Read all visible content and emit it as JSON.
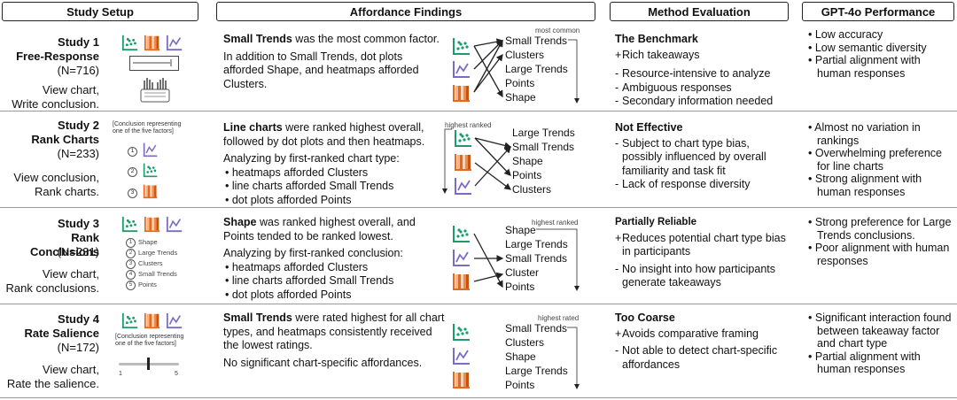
{
  "headers": {
    "setup": "Study Setup",
    "findings": "Affordance Findings",
    "method": "Method Evaluation",
    "gpt": "GPT-4o Performance"
  },
  "studies": [
    {
      "title": "Study 1",
      "subtitle": "Free-Response",
      "n": "(N=716)",
      "action1": "View chart,",
      "action2": "Write conclusion.",
      "finding_head": "Small Trends",
      "finding_rest": " was the most common factor.",
      "finding_p2": "In addition to Small Trends, dot plots afforded Shape, and heatmaps afforded Clusters.",
      "flow_tag": "most common",
      "flow_labels": [
        "Small Trends",
        "Clusters",
        "Large Trends",
        "Points",
        "Shape"
      ],
      "method_head": "The Benchmark",
      "method_items": [
        [
          "+",
          "Rich takeaways"
        ],
        [
          "-",
          "Resource-intensive to analyze"
        ],
        [
          "-",
          "Ambiguous responses"
        ],
        [
          "-",
          "Secondary information needed"
        ]
      ],
      "gpt": [
        "Low accuracy",
        "Low semantic diversity",
        "Partial alignment with human responses"
      ]
    },
    {
      "title": "Study 2",
      "subtitle": "Rank Charts",
      "n": "(N=233)",
      "action1": "View conclusion,",
      "action2": "Rank charts.",
      "setup_note": "[Conclusion representing one of the five factors]",
      "rank_nums": [
        "1",
        "2",
        "3"
      ],
      "finding_head": "Line charts",
      "finding_rest": " were ranked highest overall, followed by dot plots and then heatmaps.",
      "finding_p2": "Analyzing by first-ranked chart type:",
      "finding_bullets": [
        "heatmaps afforded Clusters",
        "line charts afforded Small Trends",
        "dot plots afforded Points"
      ],
      "flow_tag": "highest ranked",
      "flow_labels": [
        "Large Trends",
        "Small Trends",
        "Shape",
        "Points",
        "Clusters"
      ],
      "method_head": "Not Effective",
      "method_items": [
        [
          "-",
          "Subject to chart type bias, possibly influenced by overall familiarity and task fit"
        ],
        [
          "-",
          "Lack of response diversity"
        ]
      ],
      "gpt": [
        "Almost no variation in rankings",
        "Overwhelming preference for line charts",
        "Strong alignment with human responses"
      ]
    },
    {
      "title": "Study 3",
      "subtitle": "Rank Conclusions",
      "n": "(N=231)",
      "action1": "View chart,",
      "action2": "Rank conclusions.",
      "setup_list": [
        "Shape",
        "Large Trends",
        "Clusters",
        "Small Trends",
        "Points"
      ],
      "finding_head": "Shape",
      "finding_rest": " was ranked highest overall, and Points tended to be ranked lowest.",
      "finding_p2": "Analyzing by first-ranked conclusion:",
      "finding_bullets": [
        "heatmaps afforded Clusters",
        "line charts afforded Small Trends",
        "dot plots afforded Points"
      ],
      "flow_tag": "highest ranked",
      "flow_labels": [
        "Shape",
        "Large Trends",
        "Small Trends",
        "Cluster",
        "Points"
      ],
      "method_head": "Partially Reliable",
      "method_items": [
        [
          "+",
          "Reduces potential chart type bias in participants"
        ],
        [
          "-",
          "No insight into how participants generate takeaways"
        ]
      ],
      "gpt": [
        "Strong preference for Large Trends conclusions.",
        "Poor alignment with human responses"
      ]
    },
    {
      "title": "Study 4",
      "subtitle": "Rate Salience",
      "n": "(N=172)",
      "action1": "View chart,",
      "action2": "Rate the salience.",
      "setup_note": "[Conclusion representing one of the five factors]",
      "slider_min": "1",
      "slider_max": "5",
      "finding_head": "Small Trends",
      "finding_rest": " were rated highest for all chart types, and heatmaps consistently received the lowest ratings.",
      "finding_p2": "No significant chart-specific affordances.",
      "flow_tag": "highest rated",
      "flow_labels": [
        "Small Trends",
        "Clusters",
        "Shape",
        "Large Trends",
        "Points"
      ],
      "method_head": "Too Coarse",
      "method_items": [
        [
          "+",
          "Avoids comparative framing"
        ],
        [
          "-",
          "Not able to detect chart-specific affordances"
        ]
      ],
      "gpt": [
        "Significant interaction found between takeaway factor and chart type",
        "Partial alignment with human responses"
      ]
    }
  ],
  "colors": {
    "dot": "#1a9c6b",
    "heat": "#e8671c",
    "line": "#7a6cc4",
    "border": "#999999"
  }
}
